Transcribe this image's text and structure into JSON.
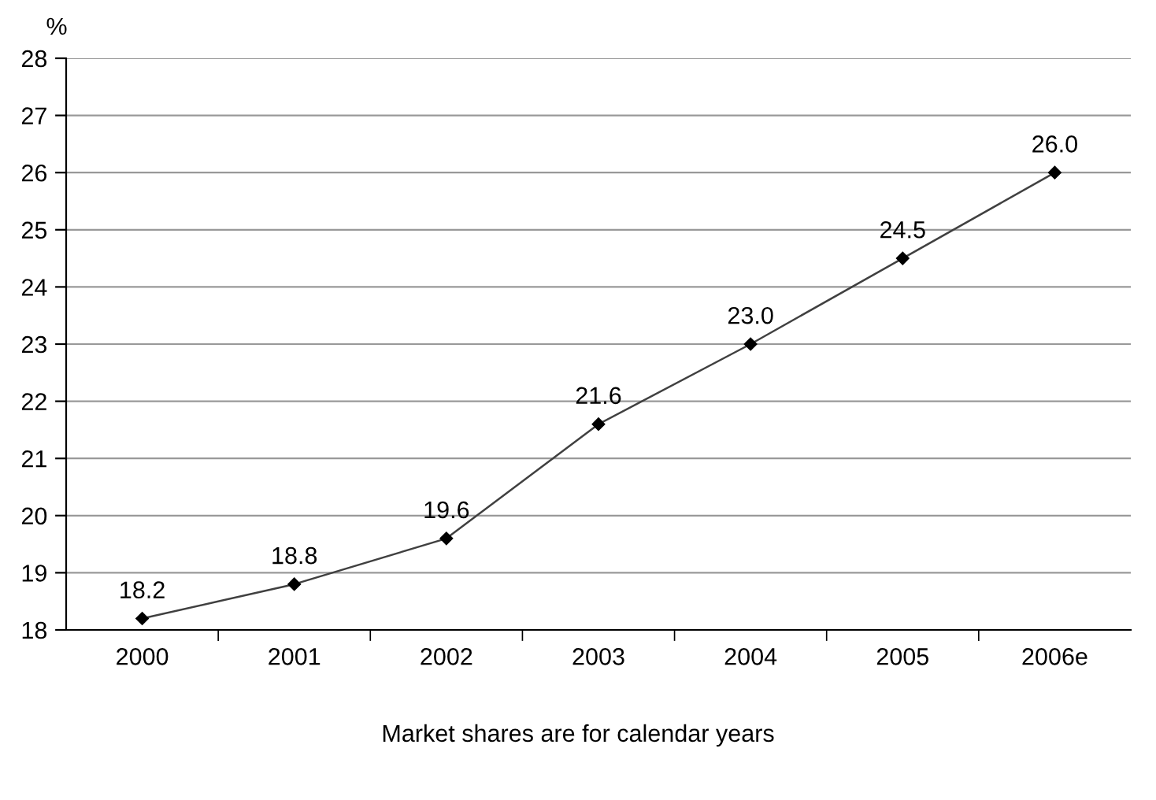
{
  "chart_data": {
    "type": "line",
    "ylabel": "%",
    "categories": [
      "2000",
      "2001",
      "2002",
      "2003",
      "2004",
      "2005",
      "2006e"
    ],
    "values": [
      18.2,
      18.8,
      19.6,
      21.6,
      23.0,
      24.5,
      26.0
    ],
    "value_labels": [
      "18.2",
      "18.8",
      "19.6",
      "21.6",
      "23.0",
      "24.5",
      "26.0"
    ],
    "color": "#404040",
    "marker": "diamond",
    "line_style": "solid",
    "ylim": [
      18,
      28
    ],
    "yticks": [
      18,
      19,
      20,
      21,
      22,
      23,
      24,
      25,
      26,
      27,
      28
    ],
    "grid": "y",
    "annotations": [
      "Market shares are for calendar years"
    ]
  }
}
